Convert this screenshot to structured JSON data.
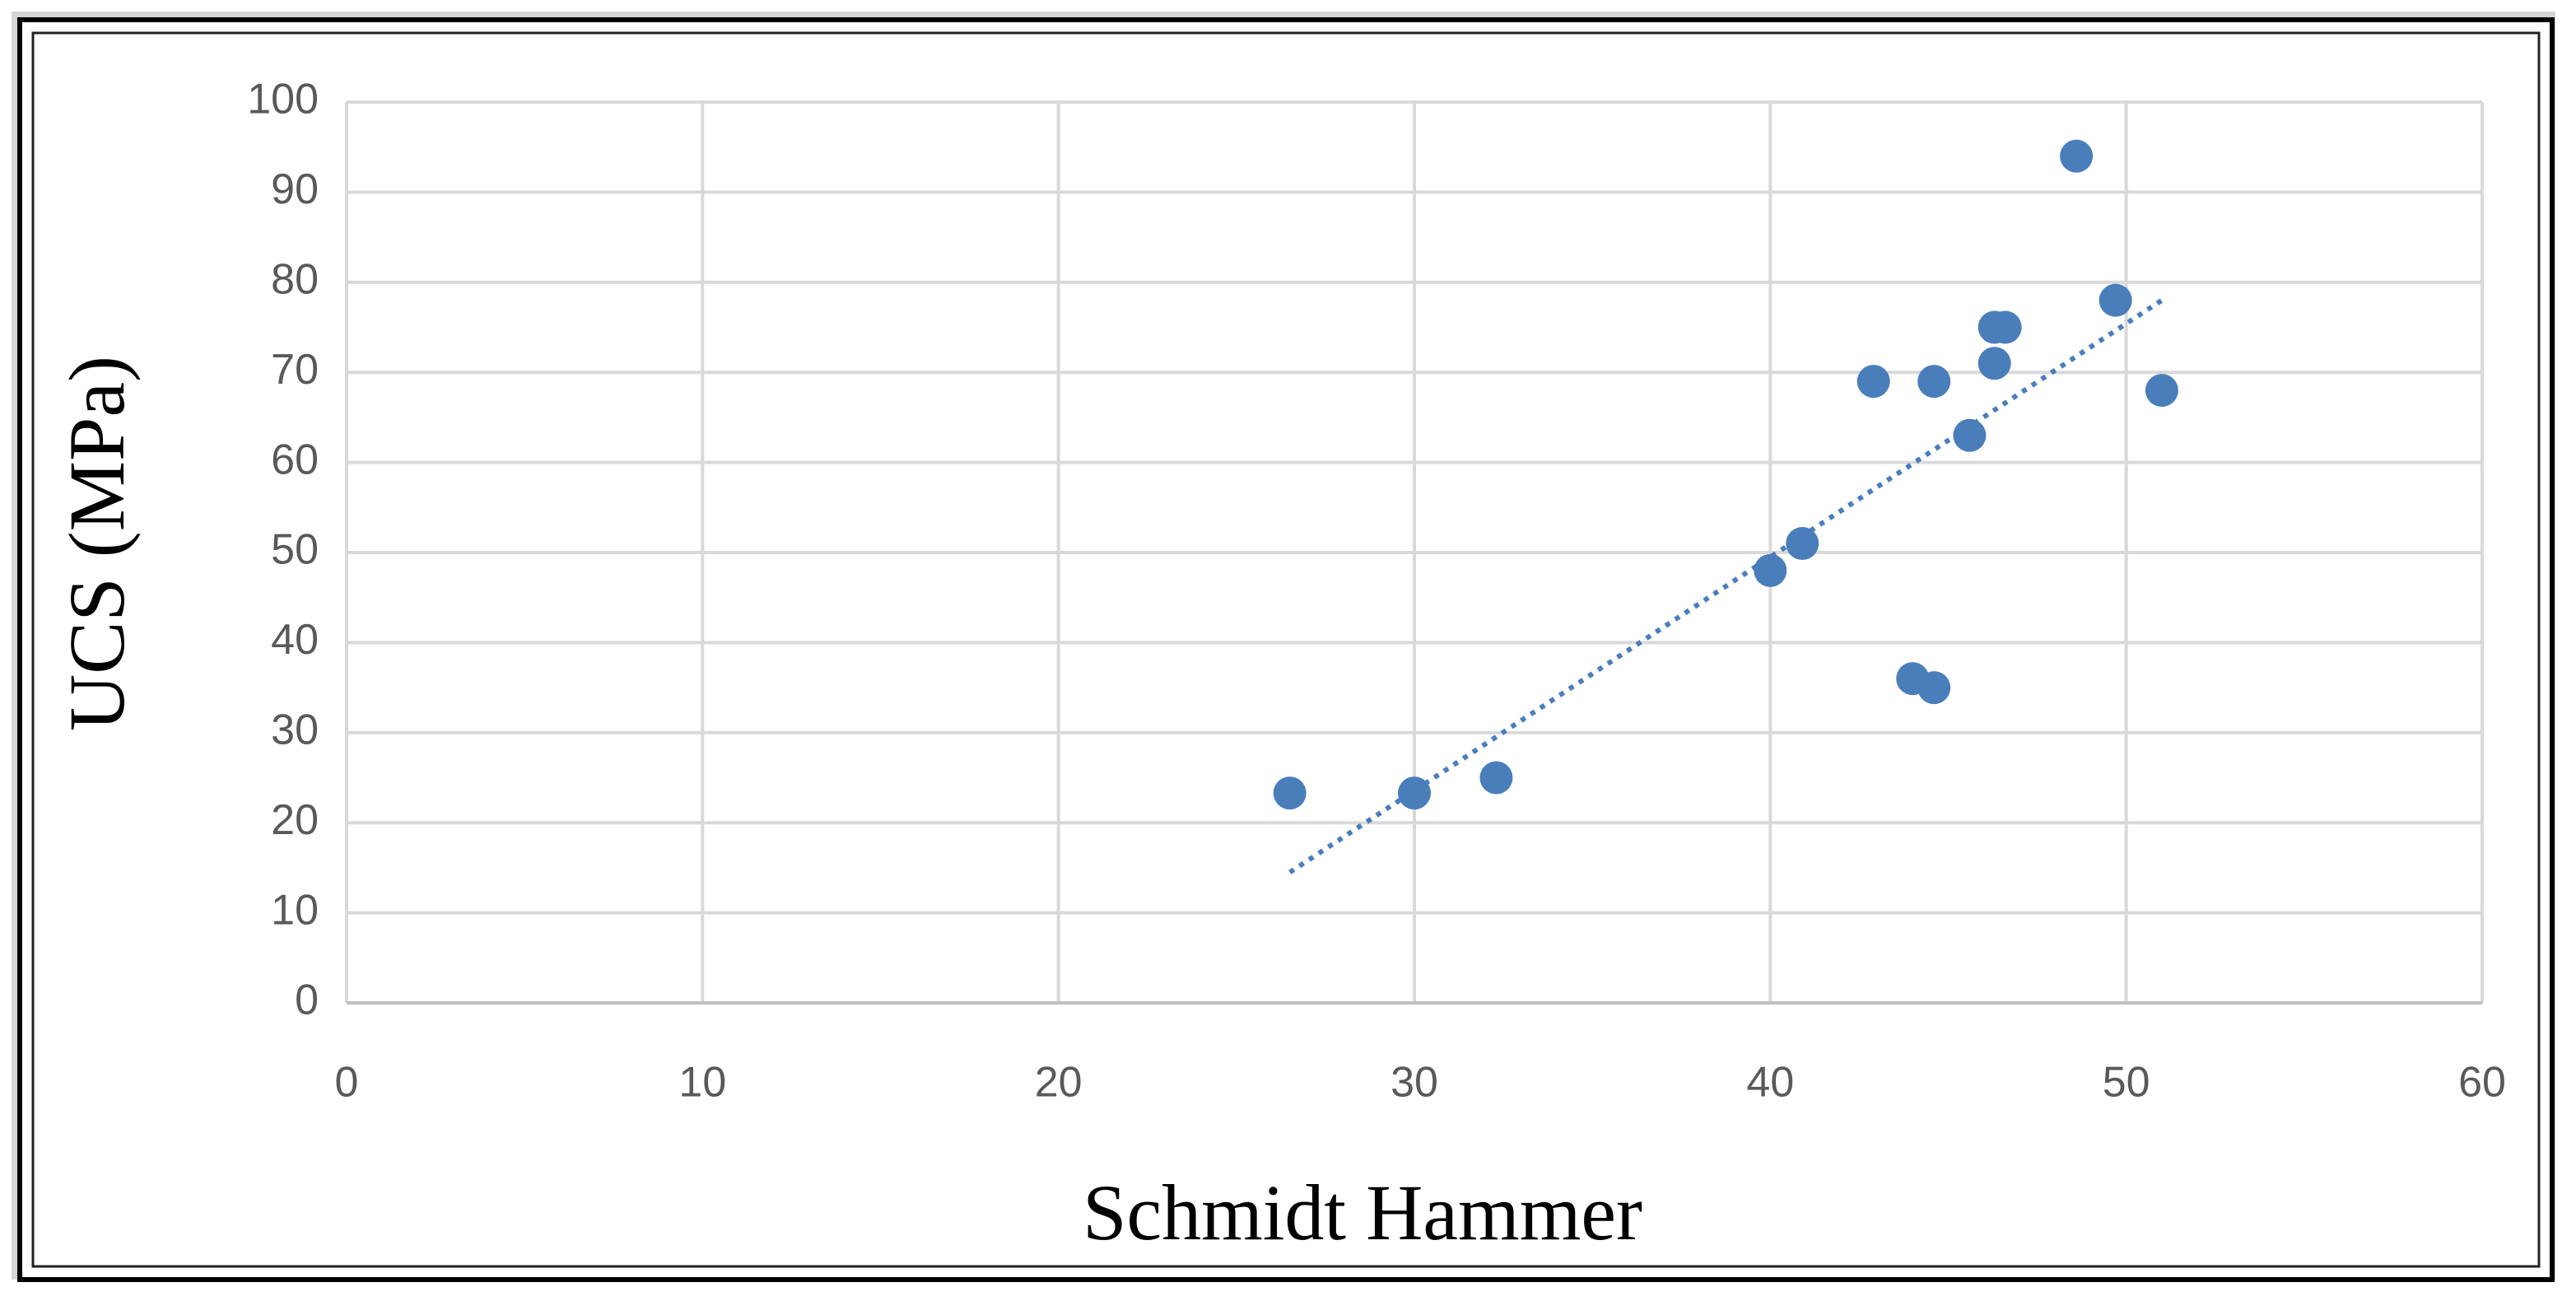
{
  "chart_data": {
    "type": "scatter",
    "x_label": "Schmidt Hammer",
    "y_label": "UCS (MPa)",
    "xlim": [
      0,
      60
    ],
    "xticks": [
      0,
      10,
      20,
      30,
      40,
      50,
      60
    ],
    "ylim": [
      0,
      100
    ],
    "yticks": [
      0,
      10,
      20,
      30,
      40,
      50,
      60,
      70,
      80,
      90,
      100
    ],
    "grid": true,
    "series": [
      {
        "color": "#4a7ebb",
        "x": [
          26.5,
          30,
          32.3,
          40,
          40.9,
          42.9,
          44.6,
          44,
          44.6,
          45.6,
          46.3,
          46.6,
          46.3,
          48.6,
          49.7,
          51
        ],
        "values": [
          23.3,
          23.3,
          25,
          48,
          51,
          69,
          69,
          36,
          35,
          63,
          75,
          75,
          71,
          94,
          78,
          68
        ]
      }
    ],
    "trendline": {
      "style": "dotted",
      "color": "#4a7ebb",
      "x": [
        26.5,
        51
      ],
      "values": [
        14.5,
        78
      ]
    }
  }
}
